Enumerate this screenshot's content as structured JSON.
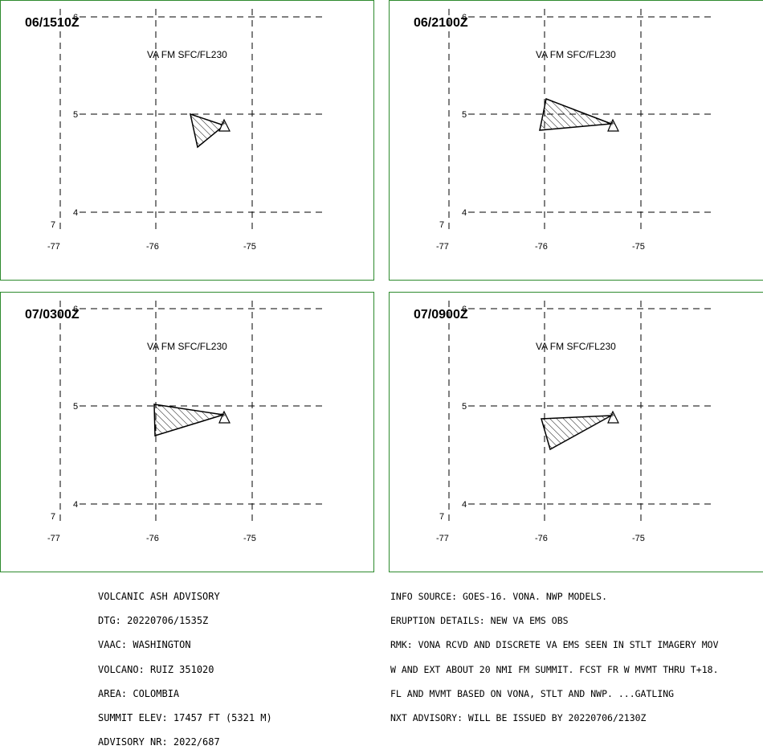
{
  "panels": [
    {
      "time": "06/1510Z",
      "label": "VA FM SFC/FL230"
    },
    {
      "time": "06/2100Z",
      "label": "VA FM SFC/FL230"
    },
    {
      "time": "07/0300Z",
      "label": "VA FM SFC/FL230"
    },
    {
      "time": "07/0900Z",
      "label": "VA FM SFC/FL230"
    }
  ],
  "axes": {
    "lat_ticks": [
      "6",
      "5",
      "4"
    ],
    "lon_ticks": [
      "-77",
      "-76",
      "-75"
    ],
    "corner_mark": "7",
    "volcano_marker": "triangle-with-asterisk-icon"
  },
  "colors": {
    "panel_border": "#2e8b2e",
    "grid": "#000000",
    "ash_fill": "hatched"
  },
  "advisory_left": [
    "VOLCANIC ASH ADVISORY",
    "DTG: 20220706/1535Z",
    "VAAC: WASHINGTON",
    "VOLCANO: RUIZ 351020",
    "AREA: COLOMBIA",
    "SUMMIT ELEV: 17457 FT (5321 M)",
    "ADVISORY NR: 2022/687"
  ],
  "advisory_right": [
    "INFO SOURCE: GOES-16. VONA. NWP MODELS.",
    "ERUPTION DETAILS: NEW VA EMS OBS",
    "RMK: VONA RCVD AND DISCRETE VA EMS SEEN IN STLT IMAGERY MOV",
    "W AND EXT ABOUT 20 NMI FM SUMMIT. FCST FR W MVMT THRU T+18.",
    "FL AND MVMT BASED ON VONA, STLT AND NWP. ...GATLING",
    "NXT ADVISORY: WILL BE ISSUED BY 20220706/2130Z"
  ]
}
